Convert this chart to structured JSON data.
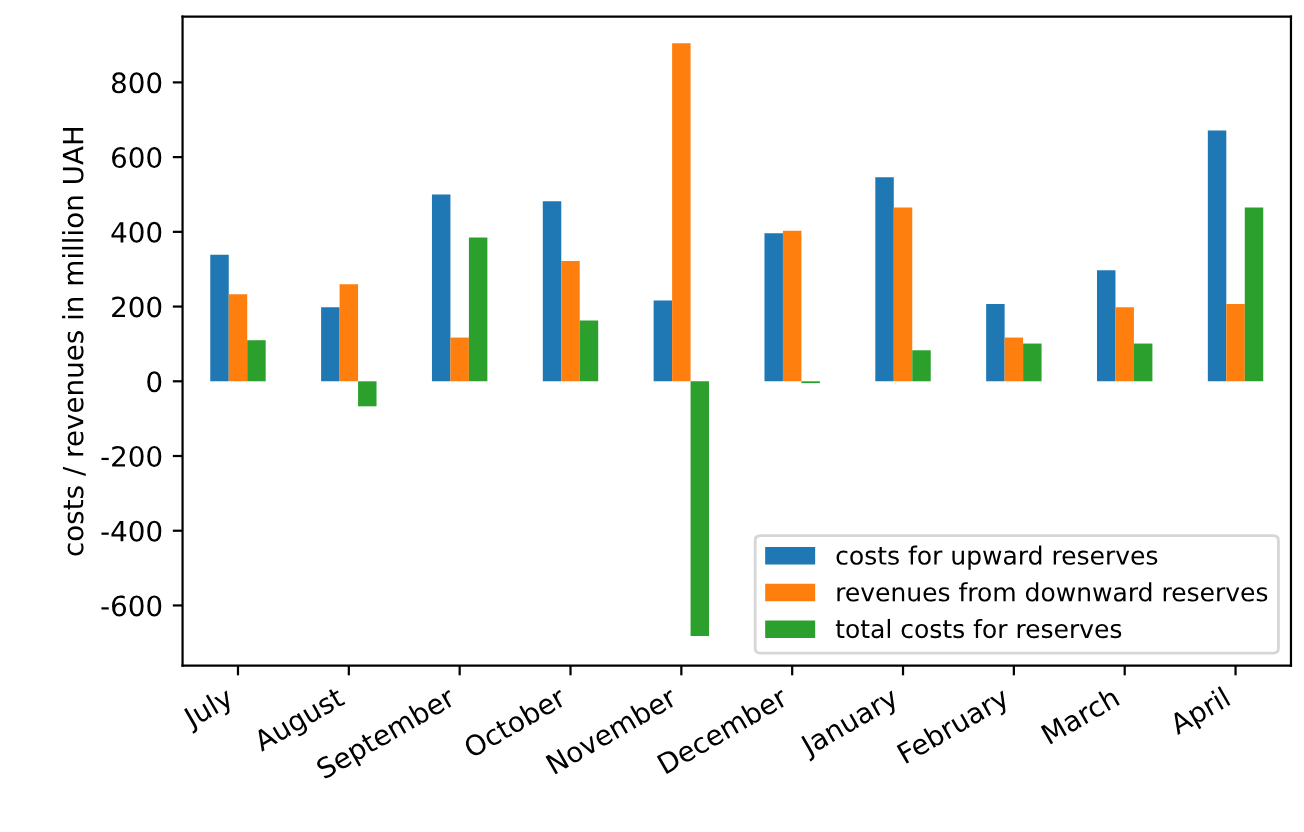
{
  "chart_data": {
    "type": "bar",
    "categories": [
      "July",
      "August",
      "September",
      "October",
      "November",
      "December",
      "January",
      "February",
      "March",
      "April"
    ],
    "ylabel": "costs / revenues in million UAH",
    "series": [
      {
        "name": "costs for upward reserves",
        "color": "#1f77b4",
        "values": [
          339,
          198,
          500,
          482,
          216,
          396,
          546,
          207,
          297,
          671
        ]
      },
      {
        "name": "revenues from downward reserves",
        "color": "#ff7f0e",
        "values": [
          233,
          260,
          117,
          322,
          905,
          403,
          465,
          117,
          198,
          207
        ]
      },
      {
        "name": "total costs for reserves",
        "color": "#2ca02c",
        "values": [
          110,
          -67,
          385,
          163,
          -682,
          -5,
          83,
          101,
          101,
          465
        ]
      }
    ],
    "ylim": [
      -761,
      976
    ],
    "yticks": [
      -600,
      -400,
      -200,
      0,
      200,
      400,
      600,
      800
    ],
    "grid": false,
    "legend": "bottom right"
  }
}
